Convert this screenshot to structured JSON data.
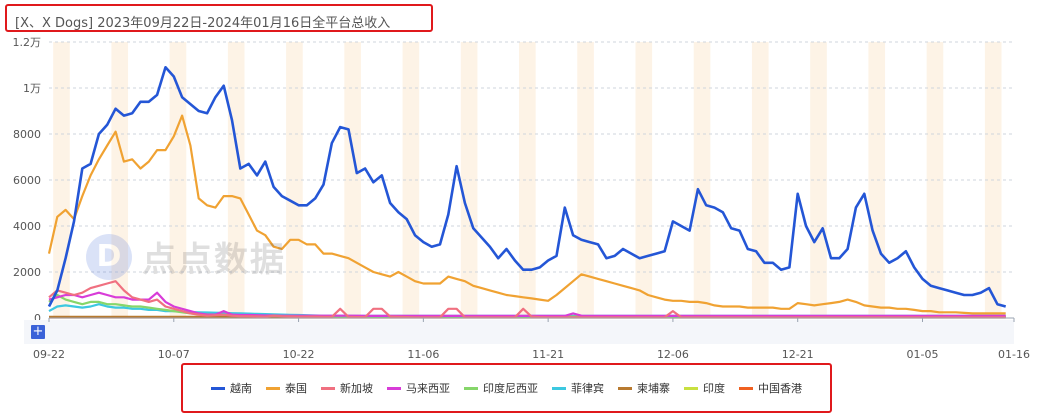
{
  "title": "[X、X Dogs] 2023年09月22日-2024年01月16日全平台总收入",
  "watermark": {
    "logo": "D",
    "text": "点点数据"
  },
  "zoom_button": {
    "label": "+"
  },
  "chart_data": {
    "type": "line",
    "title": "[X、X Dogs] 2023年09月22日-2024年01月16日全平台总收入",
    "ylim": [
      0,
      12000
    ],
    "y_ticks": [
      0,
      2000,
      4000,
      6000,
      8000,
      10000,
      12000
    ],
    "y_tick_labels": [
      "0",
      "2000",
      "4000",
      "6000",
      "8000",
      "1万",
      "1.2万"
    ],
    "x_start": "2023-09-22",
    "x_end": "2024-01-16",
    "x_tick_labels": [
      "09-22",
      "10-07",
      "10-22",
      "11-06",
      "11-21",
      "12-06",
      "12-21",
      "01-05",
      "01-16"
    ],
    "grid": true,
    "legend_position": "bottom",
    "weekend_shading": true,
    "series": [
      {
        "name": "越南",
        "color": "#2456d6",
        "values": [
          500,
          1200,
          2600,
          4200,
          6500,
          6700,
          8000,
          8400,
          9100,
          8800,
          8900,
          9400,
          9400,
          9700,
          10900,
          10500,
          9600,
          9300,
          9000,
          8900,
          9600,
          10100,
          8600,
          6500,
          6700,
          6200,
          6800,
          5700,
          5300,
          5100,
          4900,
          4900,
          5200,
          5800,
          7600,
          8300,
          8200,
          6300,
          6500,
          5900,
          6200,
          5000,
          4600,
          4300,
          3600,
          3300,
          3100,
          3200,
          4500,
          6600,
          5000,
          3900,
          3500,
          3100,
          2600,
          3000,
          2500,
          2100,
          2100,
          2200,
          2500,
          2700,
          4800,
          3600,
          3400,
          3300,
          3200,
          2600,
          2700,
          3000,
          2800,
          2600,
          2700,
          2800,
          2900,
          4200,
          4000,
          3800,
          5600,
          4900,
          4800,
          4600,
          3900,
          3800,
          3000,
          2900,
          2400,
          2400,
          2100,
          2200,
          5400,
          4000,
          3300,
          3900,
          2600,
          2600,
          3000,
          4800,
          5400,
          3800,
          2800,
          2400,
          2600,
          2900,
          2200,
          1700,
          1400,
          1300,
          1200,
          1100,
          1000,
          1000,
          1100,
          1300,
          600,
          500
        ]
      },
      {
        "name": "泰国",
        "color": "#f0a232",
        "values": [
          2800,
          4400,
          4700,
          4300,
          5300,
          6200,
          6900,
          7500,
          8100,
          6800,
          6900,
          6500,
          6800,
          7300,
          7300,
          7900,
          8800,
          7500,
          5200,
          4900,
          4800,
          5300,
          5300,
          5200,
          4500,
          3800,
          3600,
          3100,
          3000,
          3400,
          3400,
          3200,
          3200,
          2800,
          2800,
          2700,
          2600,
          2400,
          2200,
          2000,
          1900,
          1800,
          2000,
          1800,
          1600,
          1500,
          1500,
          1500,
          1800,
          1700,
          1600,
          1400,
          1300,
          1200,
          1100,
          1000,
          950,
          900,
          850,
          800,
          750,
          1000,
          1300,
          1600,
          1900,
          1800,
          1700,
          1600,
          1500,
          1400,
          1300,
          1200,
          1000,
          900,
          800,
          750,
          750,
          700,
          700,
          650,
          550,
          500,
          500,
          500,
          450,
          450,
          450,
          450,
          400,
          400,
          650,
          600,
          550,
          600,
          650,
          700,
          800,
          700,
          550,
          500,
          450,
          450,
          400,
          400,
          350,
          300,
          300,
          250,
          250,
          250,
          220,
          200,
          200,
          200,
          200,
          200
        ]
      },
      {
        "name": "新加坡",
        "color": "#f07080",
        "values": [
          900,
          1200,
          1100,
          1000,
          1100,
          1300,
          1400,
          1500,
          1600,
          1200,
          900,
          800,
          700,
          800,
          500,
          400,
          300,
          200,
          150,
          100,
          120,
          150,
          100,
          80,
          80,
          70,
          60,
          100,
          80,
          70,
          60,
          60,
          60,
          50,
          50,
          400,
          50,
          40,
          40,
          400,
          400,
          60,
          50,
          40,
          30,
          30,
          30,
          30,
          400,
          400,
          30,
          30,
          30,
          30,
          30,
          30,
          30,
          400,
          60,
          40,
          30,
          30,
          30,
          30,
          30,
          30,
          30,
          30,
          30,
          30,
          30,
          30,
          30,
          30,
          30,
          300,
          30,
          30,
          30,
          30,
          30,
          30,
          30,
          30,
          30,
          30,
          30,
          30,
          30,
          30,
          30,
          30,
          30,
          30,
          30,
          30,
          30,
          30,
          30,
          30,
          30,
          30,
          30,
          30,
          30,
          30,
          30,
          30,
          30,
          30,
          30,
          30,
          30,
          30,
          30,
          30
        ]
      },
      {
        "name": "马来西亚",
        "color": "#d83cd8",
        "values": [
          800,
          900,
          1000,
          1000,
          900,
          1000,
          1100,
          1000,
          900,
          900,
          800,
          800,
          800,
          1100,
          700,
          500,
          400,
          300,
          200,
          150,
          150,
          300,
          150,
          130,
          130,
          120,
          110,
          110,
          100,
          100,
          100,
          100,
          100,
          100,
          100,
          100,
          100,
          100,
          90,
          90,
          90,
          90,
          90,
          90,
          90,
          90,
          90,
          90,
          90,
          90,
          90,
          90,
          90,
          90,
          90,
          90,
          90,
          90,
          90,
          90,
          90,
          90,
          90,
          200,
          100,
          90,
          90,
          90,
          90,
          90,
          90,
          90,
          90,
          90,
          90,
          90,
          90,
          90,
          90,
          90,
          90,
          90,
          90,
          90,
          90,
          90,
          90,
          90,
          90,
          90,
          90,
          90,
          90,
          90,
          90,
          90,
          90,
          90,
          90,
          90,
          90,
          90,
          90,
          90,
          90,
          90,
          90,
          90,
          90,
          90,
          90,
          90,
          90,
          90,
          90,
          90
        ]
      },
      {
        "name": "印度尼西亚",
        "color": "#86d66a",
        "values": [
          700,
          1000,
          800,
          700,
          600,
          700,
          700,
          600,
          600,
          550,
          500,
          500,
          450,
          400,
          350,
          300,
          250,
          200,
          180,
          160,
          150,
          140,
          130,
          120,
          110,
          100,
          100,
          90,
          90,
          80,
          80,
          80,
          70,
          70,
          70,
          70,
          70,
          60,
          60,
          60,
          60,
          60,
          60,
          60,
          60,
          60,
          60,
          60,
          60,
          60,
          60,
          60,
          60,
          60,
          60,
          60,
          60,
          60,
          60,
          60,
          60,
          60,
          60,
          60,
          60,
          60,
          60,
          60,
          60,
          60,
          60,
          60,
          60,
          60,
          60,
          60,
          60,
          60,
          60,
          60,
          60,
          60,
          60,
          60,
          60,
          60,
          60,
          60,
          60,
          60,
          60,
          60,
          60,
          60,
          60,
          60,
          60,
          60,
          60,
          60,
          60,
          60,
          60,
          60,
          60,
          60,
          60,
          60,
          60,
          60,
          60,
          60,
          60,
          60,
          60,
          60
        ]
      },
      {
        "name": "菲律宾",
        "color": "#3cc8e0",
        "values": [
          300,
          500,
          550,
          500,
          450,
          500,
          600,
          500,
          450,
          450,
          400,
          400,
          350,
          350,
          300,
          300,
          280,
          260,
          250,
          240,
          230,
          220,
          210,
          200,
          190,
          180,
          170,
          160,
          150,
          140,
          130,
          120,
          110,
          100,
          100,
          100,
          100,
          90,
          90,
          90,
          90,
          90,
          90,
          90,
          90,
          90,
          90,
          90,
          90,
          90,
          90,
          90,
          90,
          90,
          90,
          90,
          90,
          90,
          90,
          90,
          90,
          90,
          90,
          90,
          90,
          90,
          90,
          90,
          90,
          90,
          90,
          90,
          90,
          90,
          90,
          90,
          90,
          90,
          90,
          90,
          90,
          90,
          90,
          90,
          90,
          90,
          90,
          90,
          90,
          90,
          90,
          90,
          90,
          90,
          90,
          90,
          90,
          90,
          90,
          90,
          90,
          90,
          90,
          90,
          90,
          90,
          90,
          90,
          90,
          90,
          90,
          90,
          90,
          90,
          90,
          90
        ]
      },
      {
        "name": "柬埔寨",
        "color": "#b87a30",
        "values": [
          50,
          50,
          50,
          50,
          50,
          50,
          50,
          50,
          50,
          50,
          50,
          50,
          50,
          50,
          50,
          50,
          50,
          50,
          50,
          50,
          50,
          50,
          50,
          50,
          50,
          50,
          50,
          50,
          50,
          50,
          50,
          50,
          50,
          50,
          50,
          50,
          50,
          50,
          50,
          50,
          50,
          50,
          50,
          50,
          50,
          50,
          50,
          50,
          50,
          50,
          50,
          50,
          50,
          50,
          50,
          50,
          50,
          50,
          50,
          50,
          50,
          50,
          50,
          50,
          50,
          50,
          50,
          50,
          50,
          50,
          50,
          50,
          50,
          50,
          50,
          50,
          50,
          50,
          50,
          50,
          50,
          50,
          50,
          50,
          50,
          50,
          50,
          50,
          50,
          50,
          50,
          50,
          50,
          50,
          50,
          50,
          50,
          50,
          50,
          50,
          50,
          50,
          50,
          50,
          50,
          50,
          50,
          50,
          50,
          50,
          50,
          50,
          50,
          50,
          50,
          50
        ]
      },
      {
        "name": "印度",
        "color": "#c8e040",
        "values": [
          30,
          30,
          30,
          30,
          30,
          30,
          30,
          30,
          30,
          30,
          30,
          30,
          30,
          30,
          30,
          30,
          30,
          30,
          30,
          30,
          30,
          30,
          30,
          30,
          30,
          30,
          30,
          30,
          30,
          30,
          30,
          30,
          30,
          30,
          30,
          30,
          30,
          30,
          30,
          30,
          30,
          30,
          30,
          30,
          30,
          30,
          30,
          30,
          30,
          30,
          30,
          30,
          30,
          30,
          30,
          30,
          30,
          30,
          30,
          30,
          30,
          30,
          30,
          30,
          30,
          30,
          30,
          30,
          30,
          30,
          30,
          30,
          30,
          30,
          30,
          30,
          30,
          30,
          30,
          30,
          30,
          30,
          30,
          30,
          30,
          30,
          30,
          30,
          30,
          30,
          30,
          30,
          30,
          30,
          30,
          30,
          30,
          30,
          30,
          30,
          30,
          30,
          30,
          30,
          30,
          30,
          30,
          30,
          30,
          30,
          30,
          30,
          30,
          30,
          30,
          30
        ]
      },
      {
        "name": "中国香港",
        "color": "#f06020",
        "values": [
          20,
          20,
          20,
          20,
          20,
          20,
          20,
          20,
          20,
          20,
          20,
          20,
          20,
          20,
          20,
          20,
          20,
          20,
          20,
          20,
          20,
          20,
          20,
          20,
          20,
          20,
          20,
          20,
          20,
          20,
          20,
          20,
          20,
          20,
          20,
          20,
          20,
          20,
          20,
          20,
          20,
          20,
          20,
          20,
          20,
          20,
          20,
          20,
          20,
          20,
          20,
          20,
          20,
          20,
          20,
          20,
          20,
          20,
          20,
          20,
          20,
          20,
          20,
          20,
          20,
          20,
          20,
          20,
          20,
          20,
          20,
          20,
          20,
          20,
          20,
          20,
          20,
          20,
          20,
          20,
          20,
          20,
          20,
          20,
          20,
          20,
          20,
          20,
          20,
          20,
          20,
          20,
          20,
          20,
          20,
          20,
          20,
          20,
          20,
          20,
          20,
          20,
          20,
          20,
          20,
          20,
          20,
          20,
          20,
          20,
          20,
          20,
          20,
          20,
          20,
          20
        ]
      }
    ]
  }
}
